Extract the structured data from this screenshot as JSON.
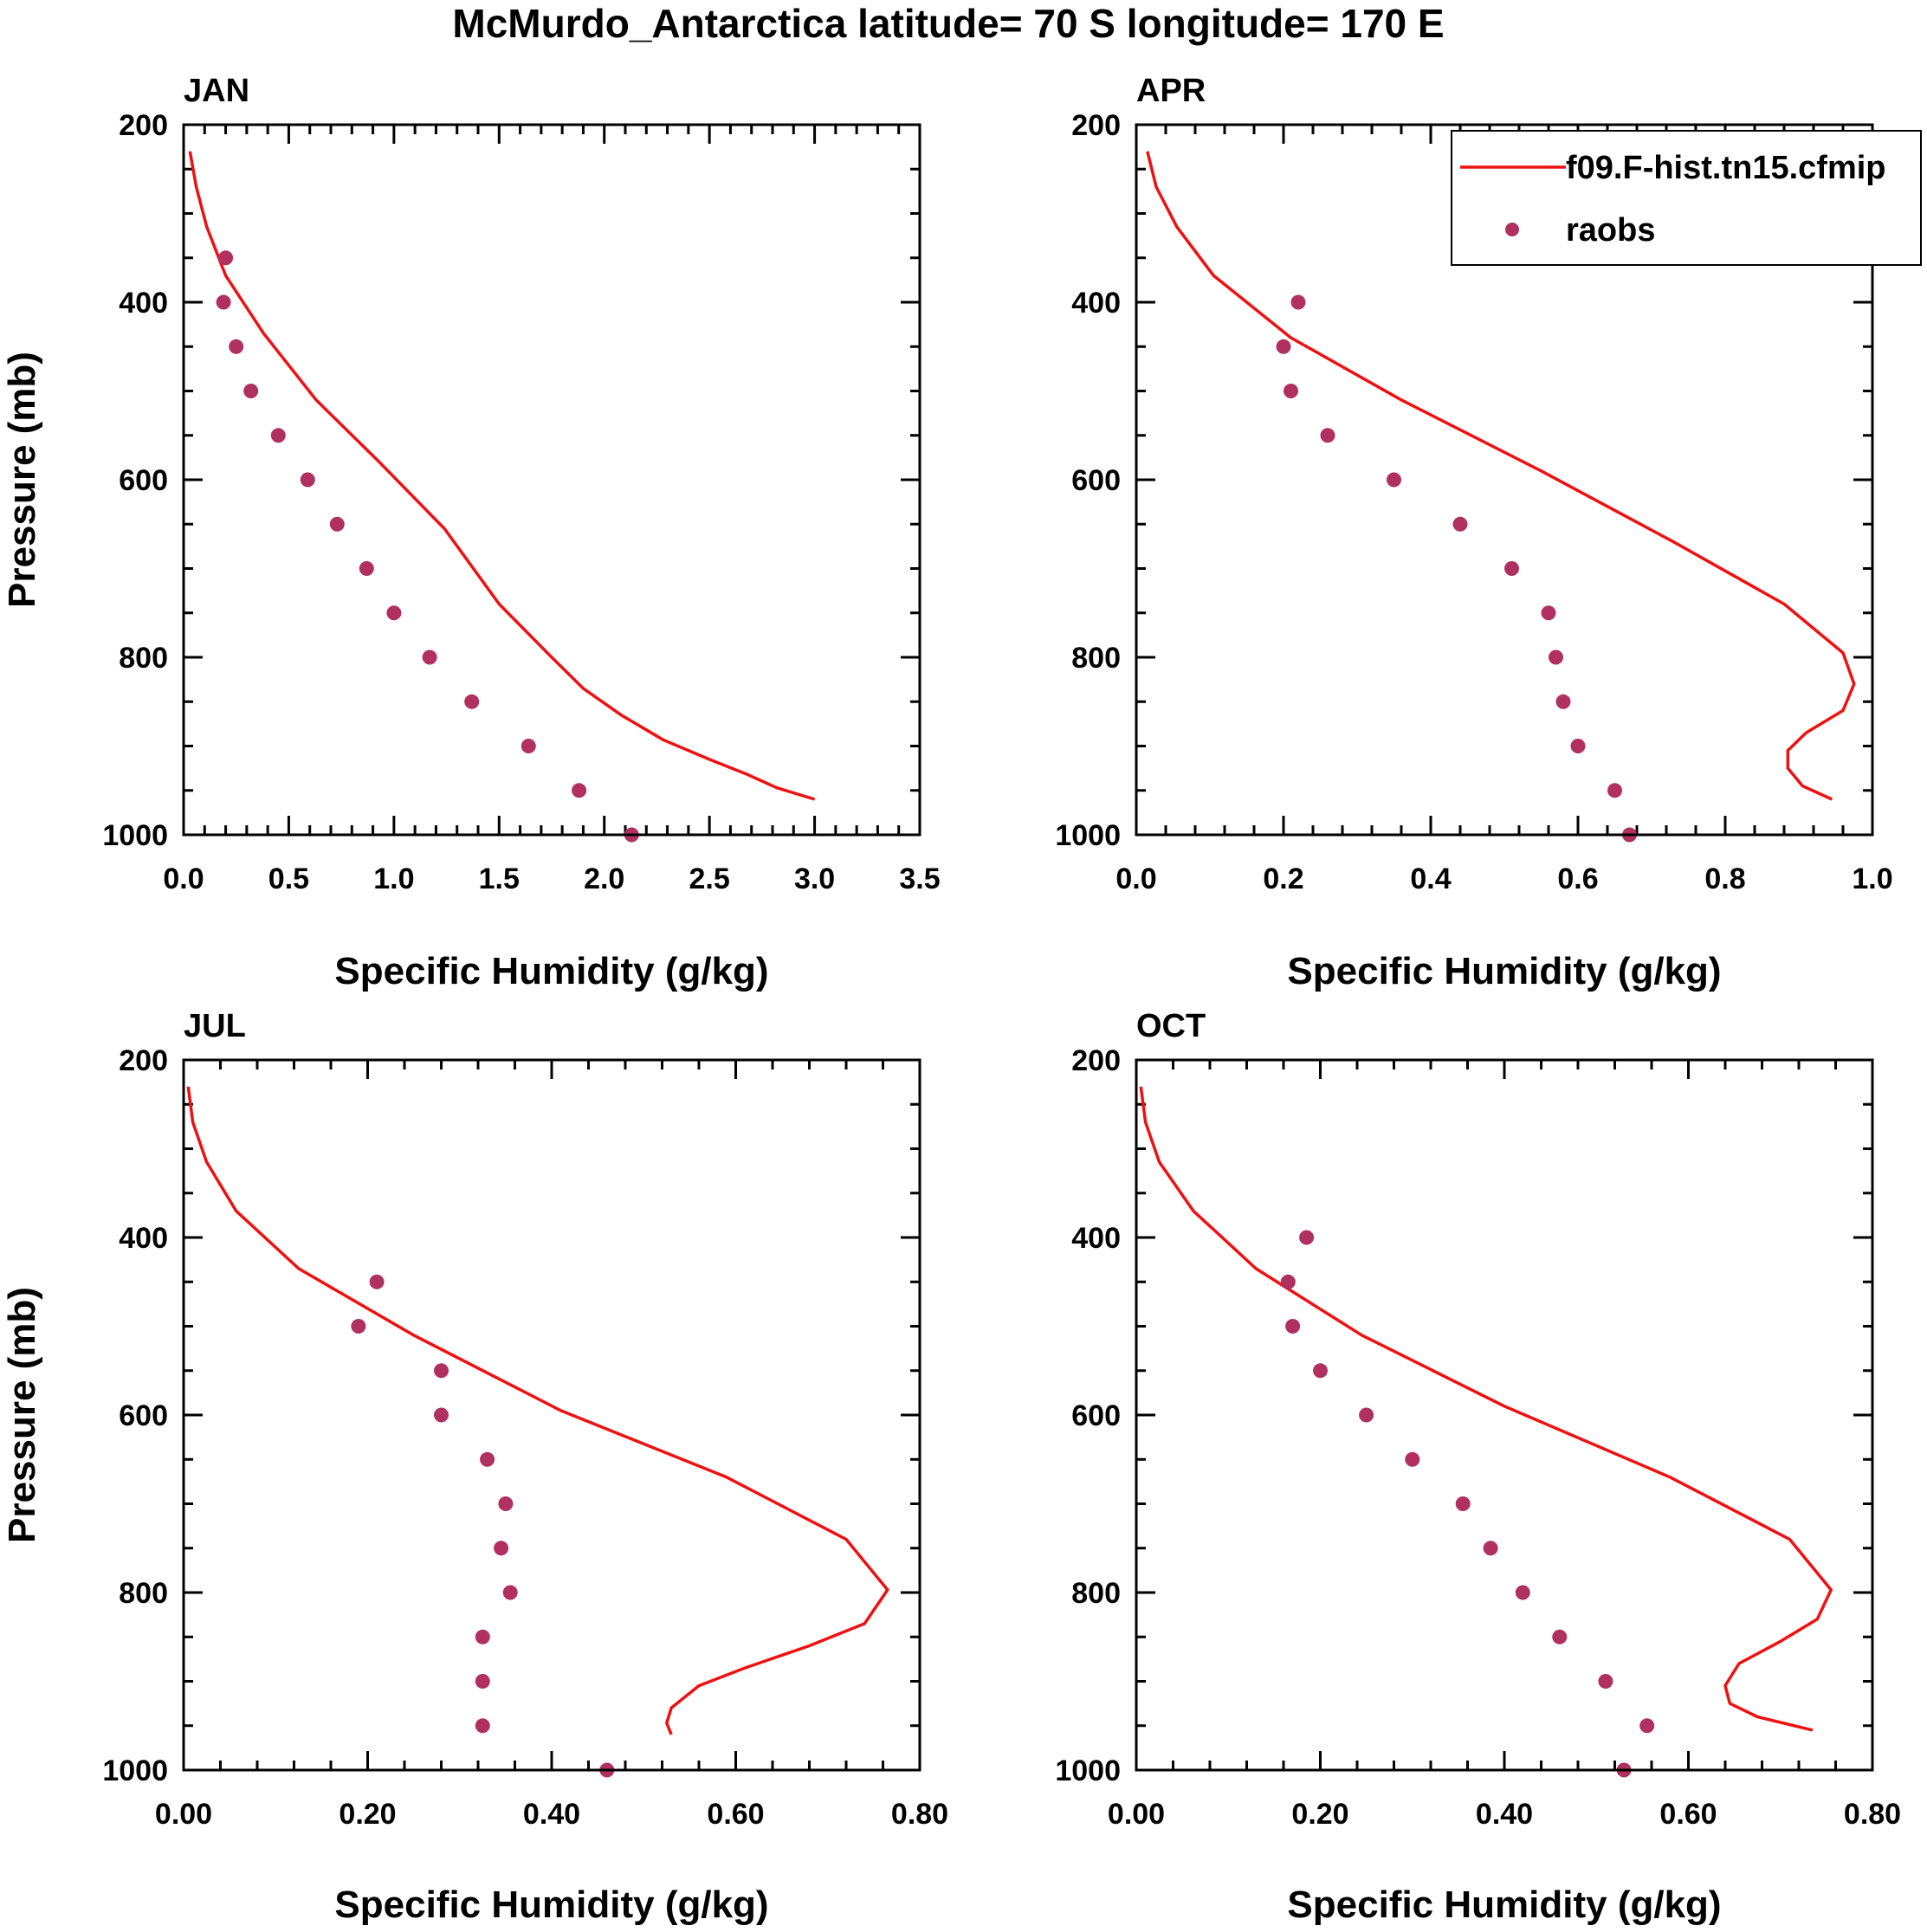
{
  "figure": {
    "title": "McMurdo_Antarctica  latitude= 70 S longitude= 170 E"
  },
  "legend": {
    "model_label": "f09.F-hist.tn15.cfmip",
    "obs_label": "raobs",
    "model_color": "#ee1111",
    "obs_color": "#b03060"
  },
  "chart_data": [
    {
      "type": "line",
      "panel": "JAN",
      "title": "JAN",
      "xlabel": "Specific Humidity (g/kg)",
      "ylabel": "Pressure (mb)",
      "xlim": [
        0,
        3.5
      ],
      "ylim": [
        200,
        1000
      ],
      "y_inverted": true,
      "xticks": [
        0,
        0.5,
        1,
        1.5,
        2,
        2.5,
        3,
        3.5
      ],
      "xtick_labels": [
        "0.0",
        "0.5",
        "1.0",
        "1.5",
        "2.0",
        "2.5",
        "3.0",
        "3.5"
      ],
      "yticks": [
        200,
        400,
        600,
        800,
        1000
      ],
      "ytick_labels": [
        "200",
        "400",
        "600",
        "800",
        "1000"
      ],
      "series": [
        {
          "name": "f09.F-hist.tn15.cfmip",
          "kind": "line",
          "x": [
            0.03,
            0.06,
            0.11,
            0.2,
            0.38,
            0.63,
            0.93,
            1.24,
            1.5,
            1.75,
            1.9,
            2.08,
            2.28,
            2.5,
            2.68,
            2.82,
            3.0
          ],
          "y": [
            230,
            270,
            315,
            370,
            435,
            510,
            580,
            655,
            740,
            800,
            835,
            865,
            893,
            915,
            932,
            947,
            960
          ]
        },
        {
          "name": "raobs",
          "kind": "scatter",
          "x": [
            0.2,
            0.19,
            0.25,
            0.32,
            0.45,
            0.59,
            0.73,
            0.87,
            1.0,
            1.17,
            1.37,
            1.64,
            1.88,
            2.13
          ],
          "y": [
            350,
            400,
            450,
            500,
            550,
            600,
            650,
            700,
            750,
            800,
            850,
            900,
            950,
            1000
          ]
        }
      ]
    },
    {
      "type": "line",
      "panel": "APR",
      "title": "APR",
      "xlabel": "Specific Humidity (g/kg)",
      "ylabel": "",
      "xlim": [
        0,
        1.0
      ],
      "ylim": [
        200,
        1000
      ],
      "y_inverted": true,
      "xticks": [
        0,
        0.2,
        0.4,
        0.6,
        0.8,
        1.0
      ],
      "xtick_labels": [
        "0.0",
        "0.2",
        "0.4",
        "0.6",
        "0.8",
        "1.0"
      ],
      "yticks": [
        200,
        400,
        600,
        800,
        1000
      ],
      "ytick_labels": [
        "200",
        "400",
        "600",
        "800",
        "1000"
      ],
      "legend_position": "top-right",
      "series": [
        {
          "name": "f09.F-hist.tn15.cfmip",
          "kind": "line",
          "x": [
            0.015,
            0.027,
            0.055,
            0.105,
            0.21,
            0.36,
            0.55,
            0.73,
            0.88,
            0.96,
            0.975,
            0.96,
            0.91,
            0.885,
            0.885,
            0.905,
            0.945
          ],
          "y": [
            230,
            270,
            315,
            370,
            440,
            510,
            590,
            670,
            740,
            795,
            830,
            860,
            885,
            905,
            925,
            945,
            960
          ]
        },
        {
          "name": "raobs",
          "kind": "scatter",
          "x": [
            0.22,
            0.2,
            0.21,
            0.26,
            0.35,
            0.44,
            0.51,
            0.56,
            0.57,
            0.58,
            0.6,
            0.65,
            0.67
          ],
          "y": [
            400,
            450,
            500,
            550,
            600,
            650,
            700,
            750,
            800,
            850,
            900,
            950,
            1000
          ]
        }
      ]
    },
    {
      "type": "line",
      "panel": "JUL",
      "title": "JUL",
      "xlabel": "Specific Humidity (g/kg)",
      "ylabel": "Pressure (mb)",
      "xlim": [
        0,
        0.8
      ],
      "ylim": [
        200,
        1000
      ],
      "y_inverted": true,
      "xticks": [
        0,
        0.2,
        0.4,
        0.6,
        0.8
      ],
      "xtick_labels": [
        "0.00",
        "0.20",
        "0.40",
        "0.60",
        "0.80"
      ],
      "yticks": [
        200,
        400,
        600,
        800,
        1000
      ],
      "ytick_labels": [
        "200",
        "400",
        "600",
        "800",
        "1000"
      ],
      "series": [
        {
          "name": "f09.F-hist.tn15.cfmip",
          "kind": "line",
          "x": [
            0.005,
            0.01,
            0.025,
            0.057,
            0.125,
            0.25,
            0.41,
            0.59,
            0.72,
            0.765,
            0.74,
            0.68,
            0.61,
            0.56,
            0.53,
            0.525,
            0.53
          ],
          "y": [
            230,
            270,
            315,
            370,
            435,
            510,
            595,
            670,
            740,
            797,
            835,
            860,
            885,
            905,
            930,
            947,
            960
          ]
        },
        {
          "name": "raobs",
          "kind": "scatter",
          "x": [
            0.21,
            0.19,
            0.28,
            0.28,
            0.33,
            0.35,
            0.345,
            0.355,
            0.325,
            0.325,
            0.325,
            0.46
          ],
          "y": [
            450,
            500,
            550,
            600,
            650,
            700,
            750,
            800,
            850,
            900,
            950,
            1000
          ]
        }
      ]
    },
    {
      "type": "line",
      "panel": "OCT",
      "title": "OCT",
      "xlabel": "Specific Humidity (g/kg)",
      "ylabel": "",
      "xlim": [
        0,
        0.8
      ],
      "ylim": [
        200,
        1000
      ],
      "y_inverted": true,
      "xticks": [
        0,
        0.2,
        0.4,
        0.6,
        0.8
      ],
      "xtick_labels": [
        "0.00",
        "0.20",
        "0.40",
        "0.60",
        "0.80"
      ],
      "yticks": [
        200,
        400,
        600,
        800,
        1000
      ],
      "ytick_labels": [
        "200",
        "400",
        "600",
        "800",
        "1000"
      ],
      "series": [
        {
          "name": "f09.F-hist.tn15.cfmip",
          "kind": "line",
          "x": [
            0.005,
            0.01,
            0.025,
            0.062,
            0.13,
            0.245,
            0.4,
            0.58,
            0.71,
            0.755,
            0.74,
            0.7,
            0.655,
            0.64,
            0.645,
            0.675,
            0.735
          ],
          "y": [
            230,
            270,
            315,
            370,
            435,
            510,
            590,
            670,
            740,
            797,
            830,
            855,
            880,
            905,
            925,
            940,
            955
          ]
        },
        {
          "name": "raobs",
          "kind": "scatter",
          "x": [
            0.185,
            0.165,
            0.17,
            0.2,
            0.25,
            0.3,
            0.355,
            0.385,
            0.42,
            0.46,
            0.51,
            0.555,
            0.53
          ],
          "y": [
            400,
            450,
            500,
            550,
            600,
            650,
            700,
            750,
            800,
            850,
            900,
            950,
            1000
          ]
        }
      ]
    }
  ]
}
